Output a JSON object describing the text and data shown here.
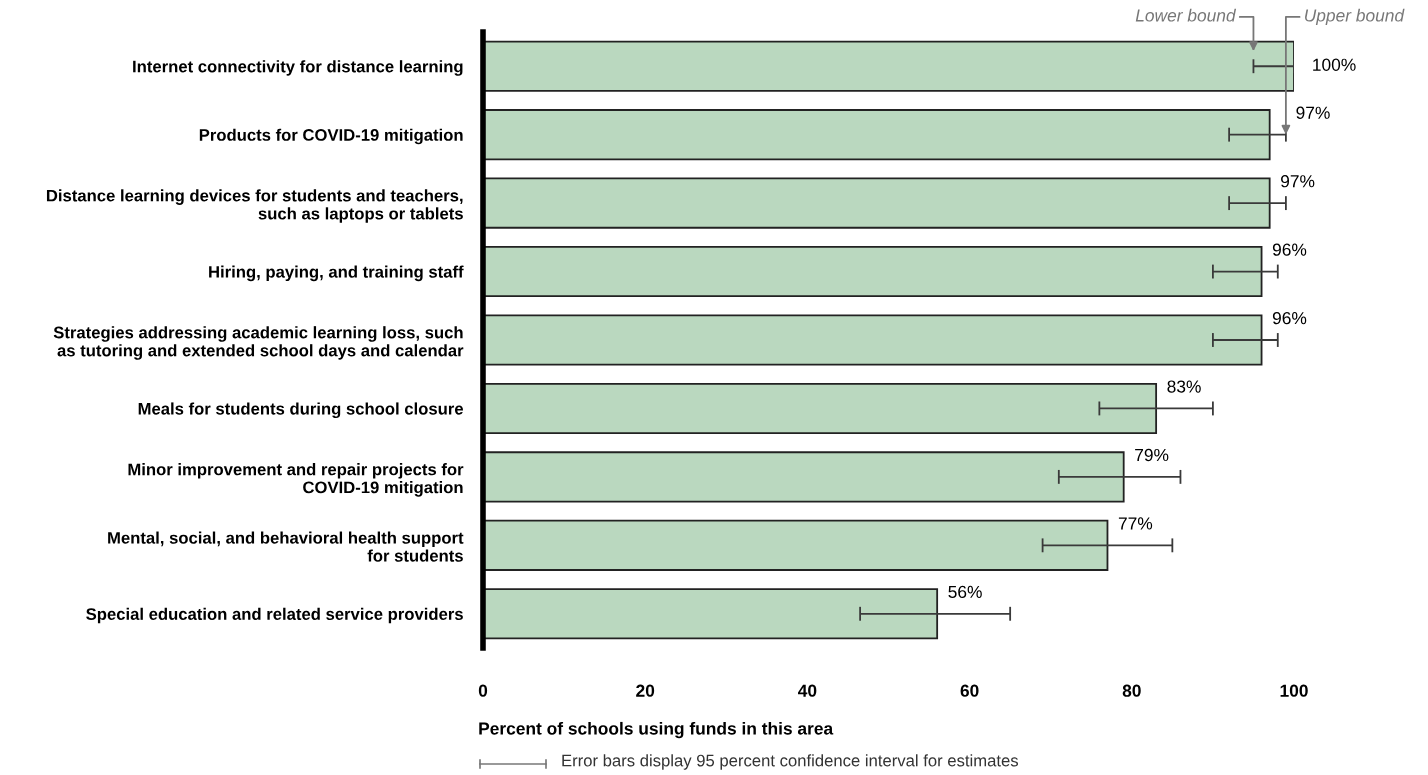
{
  "chart_data": {
    "type": "bar",
    "orientation": "horizontal",
    "categories": [
      "Internet connectivity for distance learning",
      "Products for COVID-19 mitigation",
      "Distance learning devices for students and teachers,\nsuch as laptops or tablets",
      "Hiring, paying, and training staff",
      "Strategies addressing academic learning loss, such\nas tutoring and extended school days and calendar",
      "Meals for students during school closure",
      "Minor improvement and repair projects for\nCOVID-19 mitigation",
      "Mental, social, and behavioral health support\nfor students",
      "Special education and related service providers"
    ],
    "values": [
      100,
      97,
      97,
      96,
      96,
      83,
      79,
      77,
      56
    ],
    "value_labels": [
      "100%",
      "97%",
      "97%",
      "96%",
      "96%",
      "83%",
      "79%",
      "77%",
      "56%"
    ],
    "errors": [
      [
        95,
        100
      ],
      [
        92,
        99
      ],
      [
        92,
        99
      ],
      [
        90,
        98
      ],
      [
        90,
        98
      ],
      [
        76,
        90
      ],
      [
        71,
        86
      ],
      [
        69,
        85
      ],
      [
        46.5,
        65
      ]
    ],
    "color": "#bad8bf",
    "xlabel": "Percent of schools using funds in this area",
    "xlim": [
      0,
      100
    ],
    "xticks": [
      0,
      20,
      40,
      60,
      80,
      100
    ],
    "grid": false,
    "annotations": [
      {
        "text": "Lower bound",
        "x": 95,
        "y": "Internet connectivity for distance learning"
      },
      {
        "text": "Upper bound",
        "x": 99,
        "y": "Products for COVID-19 mitigation"
      },
      "Error bars display 95 percent confidence interval for estimates"
    ]
  }
}
